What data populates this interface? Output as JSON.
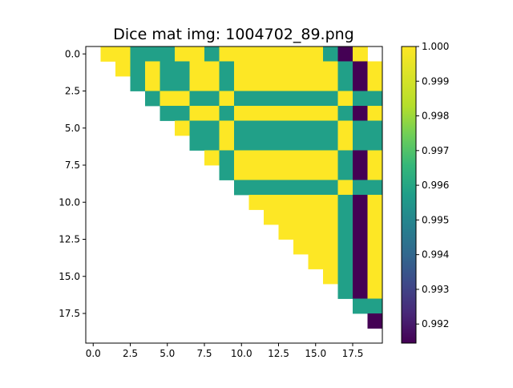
{
  "chart_data": {
    "type": "heatmap",
    "title": "Dice mat img: 1004702_89.png",
    "xlabel": "",
    "ylabel": "",
    "n": 20,
    "x_ticks": [
      {
        "value": 0,
        "label": "0.0"
      },
      {
        "value": 2.5,
        "label": "2.5"
      },
      {
        "value": 5,
        "label": "5.0"
      },
      {
        "value": 7.5,
        "label": "7.5"
      },
      {
        "value": 10,
        "label": "10.0"
      },
      {
        "value": 12.5,
        "label": "12.5"
      },
      {
        "value": 15,
        "label": "15.0"
      },
      {
        "value": 17.5,
        "label": "17.5"
      }
    ],
    "y_ticks": [
      {
        "value": 0,
        "label": "0.0"
      },
      {
        "value": 2.5,
        "label": "2.5"
      },
      {
        "value": 5,
        "label": "5.0"
      },
      {
        "value": 7.5,
        "label": "7.5"
      },
      {
        "value": 10,
        "label": "10.0"
      },
      {
        "value": 12.5,
        "label": "12.5"
      },
      {
        "value": 15,
        "label": "15.0"
      },
      {
        "value": 17.5,
        "label": "17.5"
      }
    ],
    "colorbar": {
      "min": 0.99145,
      "max": 1.0,
      "colormap": "viridis",
      "ticks": [
        {
          "value": 0.992,
          "label": "0.992"
        },
        {
          "value": 0.993,
          "label": "0.993"
        },
        {
          "value": 0.994,
          "label": "0.994"
        },
        {
          "value": 0.995,
          "label": "0.995"
        },
        {
          "value": 0.996,
          "label": "0.996"
        },
        {
          "value": 0.997,
          "label": "0.997"
        },
        {
          "value": 0.998,
          "label": "0.998"
        },
        {
          "value": 0.999,
          "label": "0.999"
        },
        {
          "value": 1.0,
          "label": "1.000"
        }
      ]
    },
    "level_values": {
      "Y": 1.0,
      "T": 0.9958,
      "P": 0.99145
    },
    "matrix_rows": [
      ".YYTTTYYTYYYYYYYTPY.",
      "..YTYTTYYTYYYYYYYTPY",
      "...TYTTYYTYYYYYYYTPY",
      "....TYYTTYTTTTTTTYTT",
      ".....TTYYTYYYYYYYTPY",
      "......YTTYTTTTTTTYTT",
      ".......TTYTTTTTTTYTT",
      "........YTYYYYYYYTPY",
      ".........TYYYYYYYTPY",
      "..........TTTTTTTYTT",
      "...........YYYYYYTPY",
      "............YYYYYTPY",
      ".............YYYYTPY",
      "..............YYYTPY",
      "...............YYTPY",
      "................YTPY",
      ".................TPY",
      "..................TT",
      "...................P",
      "...................."
    ]
  }
}
